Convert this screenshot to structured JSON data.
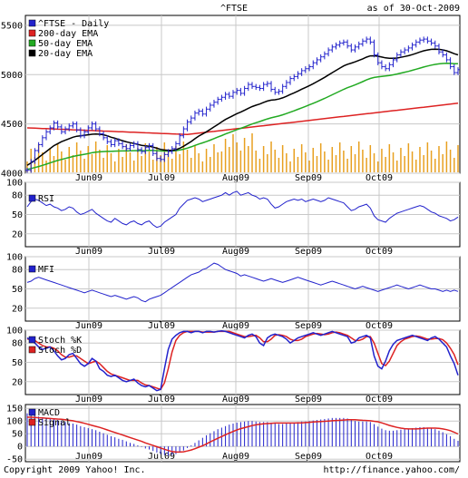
{
  "header": {
    "symbol": "^FTSE",
    "as_of": "as of 30-Oct-2009"
  },
  "footer": {
    "copyright": "Copyright 2009 Yahoo! Inc.",
    "url": "http://finance.yahoo.com/"
  },
  "colors": {
    "price": "#2222cc",
    "ema200": "#dd2222",
    "ema50": "#22aa22",
    "ema20": "#000000",
    "volume": "#e8a020",
    "grid": "#c8c8c8",
    "rsi": "#2222cc",
    "mfi": "#2222cc",
    "stoch_k": "#2222cc",
    "stoch_d": "#dd2222",
    "macd": "#2222cc",
    "signal": "#dd2222"
  },
  "chart_data": [
    {
      "type": "line",
      "panel": "price",
      "x_ticks": [
        "Jun09",
        "Jul09",
        "Aug09",
        "Sep09",
        "Oct09"
      ],
      "y_ticks": [
        4000,
        4500,
        5000,
        5500
      ],
      "ylim": [
        4000,
        5600
      ],
      "x_range": [
        0,
        123
      ],
      "legend": [
        {
          "key": "price",
          "label": "^FTSE - Daily"
        },
        {
          "key": "ema200",
          "label": "200-day EMA"
        },
        {
          "key": "ema50",
          "label": "50-day EMA"
        },
        {
          "key": "ema20",
          "label": "20-day EMA"
        }
      ],
      "price": [
        4030,
        4120,
        4230,
        4290,
        4360,
        4420,
        4460,
        4510,
        4470,
        4420,
        4450,
        4480,
        4500,
        4440,
        4380,
        4420,
        4460,
        4500,
        4450,
        4400,
        4360,
        4320,
        4290,
        4330,
        4300,
        4270,
        4250,
        4280,
        4300,
        4240,
        4220,
        4260,
        4280,
        4200,
        4150,
        4140,
        4190,
        4220,
        4250,
        4300,
        4380,
        4450,
        4520,
        4560,
        4610,
        4630,
        4600,
        4650,
        4690,
        4720,
        4750,
        4770,
        4800,
        4780,
        4820,
        4840,
        4810,
        4860,
        4900,
        4880,
        4870,
        4860,
        4900,
        4910,
        4850,
        4820,
        4830,
        4880,
        4920,
        4960,
        4980,
        5010,
        5040,
        5060,
        5080,
        5120,
        5150,
        5180,
        5210,
        5250,
        5280,
        5300,
        5320,
        5330,
        5290,
        5250,
        5280,
        5310,
        5340,
        5360,
        5330,
        5200,
        5120,
        5080,
        5060,
        5100,
        5150,
        5200,
        5230,
        5250,
        5270,
        5300,
        5330,
        5350,
        5360,
        5340,
        5320,
        5290,
        5230,
        5200,
        5150,
        5080,
        5020,
        5050
      ],
      "ema20": [
        4080,
        4105,
        4130,
        4160,
        4190,
        4220,
        4250,
        4280,
        4300,
        4320,
        4335,
        4350,
        4365,
        4375,
        4380,
        4385,
        4390,
        4395,
        4398,
        4395,
        4390,
        4380,
        4365,
        4355,
        4342,
        4330,
        4318,
        4310,
        4302,
        4292,
        4283,
        4278,
        4273,
        4265,
        4254,
        4242,
        4235,
        4233,
        4232,
        4238,
        4253,
        4273,
        4297,
        4322,
        4350,
        4377,
        4398,
        4420,
        4445,
        4470,
        4495,
        4520,
        4545,
        4565,
        4585,
        4604,
        4620,
        4638,
        4658,
        4676,
        4690,
        4702,
        4718,
        4732,
        4741,
        4745,
        4752,
        4764,
        4780,
        4798,
        4815,
        4833,
        4852,
        4870,
        4888,
        4908,
        4929,
        4950,
        4972,
        4996,
        5020,
        5043,
        5066,
        5088,
        5104,
        5116,
        5129,
        5144,
        5160,
        5177,
        5190,
        5191,
        5186,
        5178,
        5170,
        5166,
        5165,
        5168,
        5175,
        5183,
        5192,
        5203,
        5216,
        5229,
        5241,
        5250,
        5256,
        5258,
        5256,
        5251,
        5241,
        5228,
        5212,
        5200
      ],
      "ema50": [
        4040,
        4048,
        4058,
        4068,
        4080,
        4092,
        4105,
        4118,
        4130,
        4140,
        4150,
        4160,
        4170,
        4178,
        4185,
        4192,
        4200,
        4208,
        4213,
        4217,
        4220,
        4222,
        4222,
        4224,
        4225,
        4226,
        4226,
        4227,
        4229,
        4229,
        4229,
        4230,
        4232,
        4231,
        4229,
        4226,
        4225,
        4225,
        4226,
        4229,
        4235,
        4244,
        4255,
        4268,
        4282,
        4296,
        4308,
        4321,
        4336,
        4351,
        4367,
        4382,
        4398,
        4412,
        4427,
        4442,
        4455,
        4469,
        4485,
        4499,
        4512,
        4524,
        4538,
        4551,
        4562,
        4571,
        4580,
        4592,
        4605,
        4619,
        4633,
        4648,
        4663,
        4678,
        4693,
        4709,
        4725,
        4742,
        4759,
        4777,
        4795,
        4814,
        4832,
        4851,
        4867,
        4881,
        4896,
        4912,
        4929,
        4946,
        4961,
        4971,
        4977,
        4982,
        4986,
        4991,
        4998,
        5006,
        5015,
        5024,
        5033,
        5044,
        5055,
        5066,
        5077,
        5087,
        5096,
        5103,
        5109,
        5113,
        5115,
        5114,
        5111,
        5110
      ]
    },
    {
      "type": "line",
      "panel": "rsi",
      "legend": [
        {
          "key": "rsi",
          "label": "RSI"
        }
      ],
      "y_ticks": [
        20,
        50,
        80,
        100
      ],
      "ylim": [
        0,
        100
      ],
      "values": [
        62,
        70,
        74,
        72,
        68,
        64,
        66,
        62,
        60,
        56,
        58,
        62,
        60,
        54,
        50,
        52,
        55,
        58,
        52,
        48,
        44,
        40,
        38,
        44,
        40,
        36,
        34,
        38,
        40,
        36,
        34,
        38,
        40,
        34,
        30,
        32,
        38,
        42,
        46,
        50,
        60,
        66,
        72,
        74,
        76,
        74,
        70,
        72,
        74,
        76,
        78,
        80,
        84,
        80,
        84,
        86,
        80,
        82,
        84,
        80,
        78,
        74,
        76,
        74,
        66,
        60,
        62,
        66,
        70,
        72,
        74,
        72,
        74,
        70,
        72,
        74,
        72,
        70,
        72,
        76,
        74,
        72,
        70,
        68,
        62,
        56,
        58,
        62,
        64,
        66,
        60,
        48,
        42,
        40,
        38,
        44,
        48,
        52,
        54,
        56,
        58,
        60,
        62,
        64,
        62,
        58,
        54,
        52,
        48,
        46,
        44,
        40,
        42,
        46
      ]
    },
    {
      "type": "line",
      "panel": "mfi",
      "legend": [
        {
          "key": "mfi",
          "label": "MFI"
        }
      ],
      "y_ticks": [
        20,
        50,
        80,
        100
      ],
      "ylim": [
        0,
        100
      ],
      "values": [
        60,
        62,
        66,
        68,
        66,
        64,
        62,
        60,
        58,
        56,
        54,
        52,
        50,
        48,
        46,
        44,
        46,
        48,
        46,
        44,
        42,
        40,
        38,
        40,
        38,
        36,
        34,
        36,
        38,
        36,
        32,
        30,
        34,
        36,
        38,
        40,
        44,
        48,
        52,
        56,
        60,
        64,
        68,
        72,
        74,
        76,
        80,
        82,
        86,
        90,
        88,
        84,
        80,
        78,
        76,
        74,
        70,
        72,
        70,
        68,
        66,
        64,
        62,
        64,
        66,
        64,
        62,
        60,
        62,
        64,
        66,
        68,
        66,
        64,
        62,
        60,
        58,
        56,
        58,
        60,
        62,
        60,
        58,
        56,
        54,
        52,
        50,
        52,
        54,
        52,
        50,
        48,
        46,
        48,
        50,
        52,
        54,
        56,
        54,
        52,
        50,
        52,
        54,
        56,
        54,
        52,
        50,
        50,
        48,
        46,
        48,
        46,
        48,
        46
      ]
    },
    {
      "type": "line",
      "panel": "stoch",
      "legend": [
        {
          "key": "stoch_k",
          "label": "Stoch %K"
        },
        {
          "key": "stoch_d",
          "label": "Stoch %D"
        }
      ],
      "y_ticks": [
        20,
        50,
        80,
        100
      ],
      "ylim": [
        0,
        100
      ],
      "k": [
        88,
        84,
        80,
        74,
        70,
        72,
        74,
        68,
        60,
        54,
        56,
        62,
        64,
        56,
        48,
        44,
        48,
        56,
        52,
        40,
        36,
        30,
        28,
        30,
        26,
        22,
        20,
        22,
        24,
        18,
        14,
        12,
        14,
        10,
        6,
        8,
        40,
        70,
        86,
        92,
        96,
        98,
        98,
        96,
        98,
        98,
        96,
        98,
        98,
        97,
        98,
        99,
        98,
        96,
        94,
        92,
        90,
        88,
        92,
        94,
        90,
        80,
        76,
        88,
        92,
        94,
        92,
        90,
        86,
        80,
        84,
        88,
        90,
        92,
        94,
        96,
        94,
        92,
        94,
        96,
        98,
        96,
        94,
        92,
        90,
        80,
        82,
        88,
        90,
        92,
        88,
        60,
        44,
        40,
        52,
        68,
        78,
        84,
        86,
        88,
        90,
        92,
        90,
        88,
        86,
        84,
        88,
        90,
        86,
        80,
        74,
        60,
        48,
        30
      ],
      "d": [
        86,
        86,
        84,
        80,
        76,
        74,
        74,
        72,
        68,
        62,
        58,
        58,
        60,
        60,
        56,
        52,
        48,
        50,
        52,
        48,
        42,
        36,
        32,
        30,
        28,
        26,
        24,
        22,
        22,
        22,
        18,
        15,
        14,
        12,
        10,
        8,
        18,
        40,
        66,
        84,
        92,
        96,
        98,
        98,
        98,
        98,
        97,
        97,
        97,
        97,
        98,
        98,
        98,
        98,
        96,
        94,
        92,
        90,
        90,
        91,
        92,
        88,
        82,
        82,
        86,
        92,
        93,
        92,
        90,
        86,
        84,
        84,
        86,
        90,
        92,
        94,
        95,
        94,
        93,
        94,
        96,
        97,
        96,
        94,
        92,
        88,
        84,
        84,
        86,
        90,
        90,
        80,
        64,
        48,
        45,
        52,
        64,
        76,
        82,
        86,
        88,
        90,
        91,
        90,
        88,
        86,
        86,
        87,
        87,
        85,
        80,
        72,
        62,
        46
      ]
    },
    {
      "type": "bar",
      "panel": "macd",
      "legend": [
        {
          "key": "macd",
          "label": "MACD"
        },
        {
          "key": "signal",
          "label": "Signal"
        }
      ],
      "y_ticks": [
        -50,
        0,
        50,
        100,
        150
      ],
      "ylim": [
        -60,
        165
      ],
      "macd": [
        130,
        126,
        122,
        118,
        114,
        110,
        108,
        106,
        104,
        100,
        96,
        92,
        90,
        86,
        80,
        76,
        72,
        68,
        64,
        58,
        52,
        46,
        40,
        36,
        30,
        26,
        20,
        14,
        10,
        4,
        -2,
        -8,
        -12,
        -18,
        -24,
        -30,
        -34,
        -36,
        -34,
        -30,
        -24,
        -16,
        -6,
        4,
        14,
        24,
        34,
        44,
        52,
        60,
        68,
        74,
        80,
        86,
        90,
        94,
        96,
        98,
        100,
        100,
        98,
        96,
        96,
        96,
        94,
        90,
        88,
        88,
        90,
        92,
        94,
        96,
        98,
        98,
        100,
        102,
        104,
        106,
        108,
        110,
        112,
        112,
        112,
        112,
        110,
        104,
        100,
        98,
        98,
        98,
        96,
        88,
        78,
        70,
        64,
        62,
        62,
        64,
        66,
        68,
        70,
        72,
        74,
        76,
        76,
        74,
        72,
        68,
        62,
        56,
        48,
        40,
        30,
        22
      ],
      "signal": [
        115,
        115,
        114,
        113,
        112,
        111,
        110,
        109,
        108,
        107,
        105,
        103,
        101,
        98,
        95,
        91,
        87,
        83,
        79,
        75,
        70,
        65,
        60,
        55,
        50,
        45,
        40,
        35,
        30,
        25,
        20,
        14,
        9,
        4,
        -1,
        -6,
        -11,
        -16,
        -20,
        -22,
        -22,
        -21,
        -18,
        -14,
        -9,
        -3,
        3,
        10,
        18,
        25,
        32,
        39,
        46,
        53,
        59,
        65,
        70,
        74,
        78,
        82,
        85,
        87,
        89,
        90,
        91,
        92,
        92,
        92,
        92,
        92,
        92,
        93,
        93,
        94,
        95,
        96,
        97,
        98,
        99,
        100,
        101,
        102,
        103,
        104,
        105,
        105,
        105,
        104,
        103,
        102,
        101,
        99,
        97,
        93,
        88,
        83,
        79,
        75,
        72,
        70,
        69,
        69,
        69,
        70,
        71,
        72,
        72,
        72,
        71,
        69,
        66,
        62,
        56,
        49
      ]
    }
  ]
}
